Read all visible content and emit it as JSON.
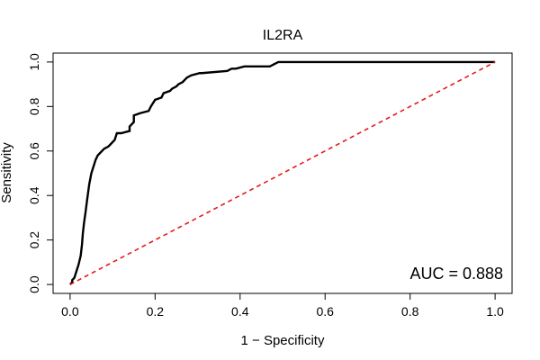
{
  "chart_data": {
    "type": "line",
    "title": "IL2RA",
    "xlabel": "1 − Specificity",
    "ylabel": "Sensitivity",
    "xlim": [
      -0.04,
      1.04
    ],
    "ylim": [
      -0.04,
      1.04
    ],
    "x_ticks": [
      0.0,
      0.2,
      0.4,
      0.6,
      0.8,
      1.0
    ],
    "x_tick_labels": [
      "0.0",
      "0.2",
      "0.4",
      "0.6",
      "0.8",
      "1.0"
    ],
    "y_ticks": [
      0.0,
      0.2,
      0.4,
      0.6,
      0.8,
      1.0
    ],
    "y_tick_labels": [
      "0.0",
      "0.2",
      "0.4",
      "0.6",
      "0.8",
      "1.0"
    ],
    "grid": false,
    "annotation": "AUC = 0.888",
    "series": [
      {
        "style": "solid",
        "color": "#000000",
        "x": [
          0.0,
          0.005,
          0.005,
          0.01,
          0.015,
          0.02,
          0.025,
          0.028,
          0.03,
          0.033,
          0.036,
          0.04,
          0.045,
          0.05,
          0.055,
          0.06,
          0.065,
          0.07,
          0.08,
          0.09,
          0.095,
          0.105,
          0.11,
          0.12,
          0.14,
          0.14,
          0.15,
          0.15,
          0.165,
          0.185,
          0.19,
          0.2,
          0.215,
          0.22,
          0.235,
          0.24,
          0.25,
          0.255,
          0.265,
          0.275,
          0.285,
          0.305,
          0.31,
          0.37,
          0.38,
          0.39,
          0.41,
          0.47,
          0.48,
          0.49,
          1.0
        ],
        "y": [
          0.0,
          0.01,
          0.02,
          0.03,
          0.06,
          0.09,
          0.13,
          0.18,
          0.23,
          0.28,
          0.32,
          0.38,
          0.45,
          0.5,
          0.53,
          0.56,
          0.58,
          0.59,
          0.61,
          0.62,
          0.63,
          0.65,
          0.68,
          0.68,
          0.69,
          0.71,
          0.73,
          0.76,
          0.77,
          0.78,
          0.8,
          0.83,
          0.84,
          0.86,
          0.87,
          0.88,
          0.89,
          0.9,
          0.91,
          0.93,
          0.94,
          0.95,
          0.95,
          0.96,
          0.97,
          0.97,
          0.98,
          0.98,
          0.99,
          1.0,
          1.0
        ]
      },
      {
        "style": "dashed",
        "color": "#e41a1c",
        "x": [
          0.0,
          1.0
        ],
        "y": [
          0.0,
          1.0
        ]
      }
    ]
  }
}
